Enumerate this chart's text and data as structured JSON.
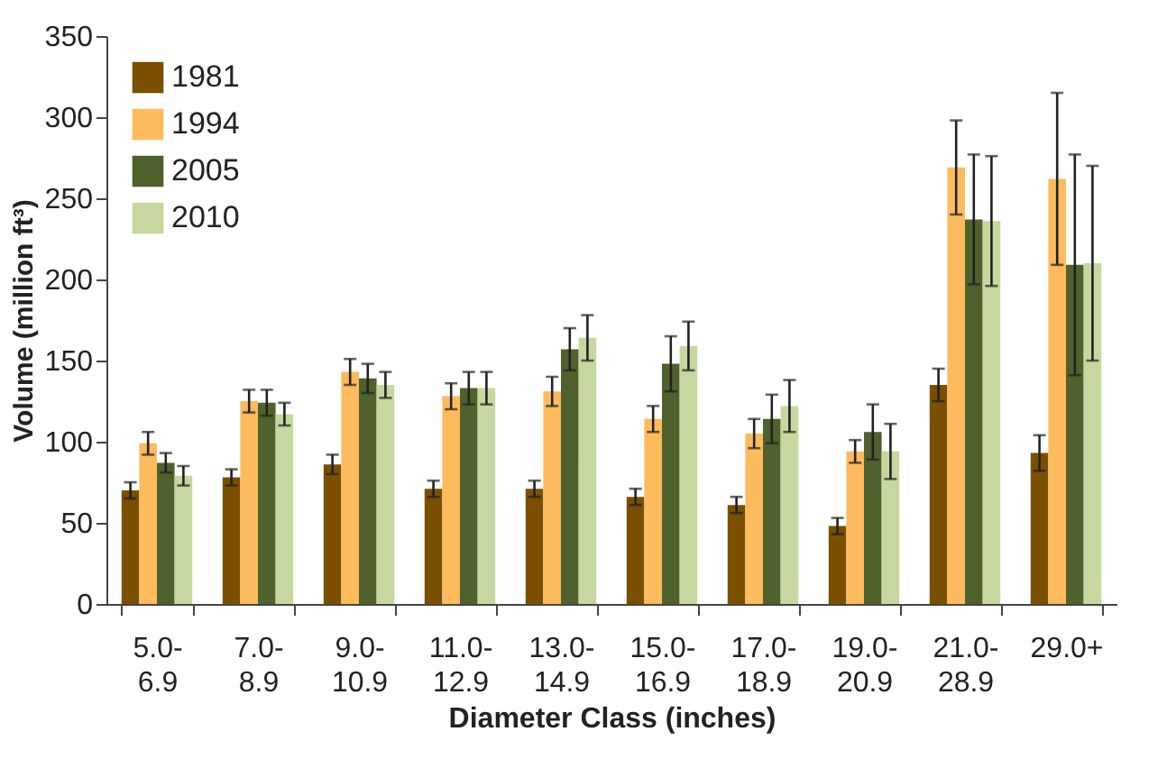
{
  "chart_data": {
    "type": "bar",
    "xlabel": "Diameter Class (inches)",
    "ylabel": "Volume (million ft³)",
    "categories": [
      "5.0- 6.9",
      "7.0- 8.9",
      "9.0- 10.9",
      "11.0- 12.9",
      "13.0- 14.9",
      "15.0- 16.9",
      "17.0- 18.9",
      "19.0- 20.9",
      "21.0- 28.9",
      "29.0+"
    ],
    "series": [
      {
        "name": "1981",
        "color": "#7a4f00",
        "values": [
          70,
          78,
          86,
          71,
          71,
          66,
          61,
          48,
          135,
          93
        ],
        "errors": [
          5,
          5,
          6,
          5,
          5,
          5,
          5,
          5,
          10,
          11
        ]
      },
      {
        "name": "1994",
        "color": "#fdbb5e",
        "values": [
          99,
          125,
          143,
          128,
          131,
          114,
          105,
          94,
          269,
          262
        ],
        "errors": [
          7,
          7,
          8,
          8,
          9,
          8,
          9,
          7,
          29,
          53
        ]
      },
      {
        "name": "2005",
        "color": "#4f612c",
        "values": [
          87,
          124,
          139,
          133,
          157,
          148,
          114,
          106,
          237,
          209
        ],
        "errors": [
          6,
          8,
          9,
          10,
          13,
          17,
          15,
          17,
          40,
          68
        ]
      },
      {
        "name": "2010",
        "color": "#c6d89f",
        "values": [
          79,
          117,
          135,
          133,
          164,
          159,
          122,
          94,
          236,
          210
        ],
        "errors": [
          6,
          7,
          8,
          10,
          14,
          15,
          16,
          17,
          40,
          60
        ]
      }
    ],
    "ylim": [
      0,
      350
    ],
    "yticks": [
      0,
      50,
      100,
      150,
      200,
      250,
      300,
      350
    ],
    "legend": "top left",
    "grid": false
  }
}
